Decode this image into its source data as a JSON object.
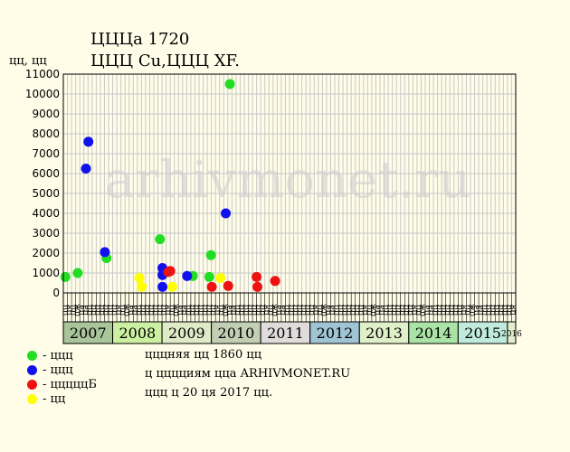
{
  "header": {
    "title": "ЦЦЦа 1720",
    "subtitle": "ЦЦЦ Cu,ЦЦЦ XF."
  },
  "watermark": "arhivmonet.ru",
  "legend": [
    {
      "color": "#22dd22",
      "label": "- ццц"
    },
    {
      "color": "#1111ee",
      "label": "- ццц"
    },
    {
      "color": "#ee1111",
      "label": "- цццццБ"
    },
    {
      "color": "#ffff00",
      "label": "- цц"
    }
  ],
  "notes": [
    "цццняя цц 1860 цц",
    "ц цццциям цца ARHIVMONET.RU",
    "ццц ц 20 ця 2017 цц."
  ],
  "chart_data": {
    "type": "scatter",
    "title": "ЦЦЦа 1720",
    "ylabel": "цц, цц",
    "ylim": [
      0,
      11000
    ],
    "y_ticks": [
      0,
      1000,
      2000,
      3000,
      4000,
      5000,
      6000,
      7000,
      8000,
      9000,
      10000,
      11000
    ],
    "grid": true,
    "month_labels": [
      "цц",
      "ця",
      "цц",
      "цж",
      "ца",
      "ца",
      "цц",
      "цц",
      "цц",
      "цц",
      "цц",
      "цц"
    ],
    "years": [
      {
        "label": "2007",
        "color": "#a9c59a"
      },
      {
        "label": "2008",
        "color": "#ccf0a2"
      },
      {
        "label": "2009",
        "color": "#dfeac6"
      },
      {
        "label": "2010",
        "color": "#c2cfb5"
      },
      {
        "label": "2011",
        "color": "#e0dcdc"
      },
      {
        "label": "2012",
        "color": "#9fc5d4"
      },
      {
        "label": "2013",
        "color": "#dff0c8"
      },
      {
        "label": "2014",
        "color": "#a9e3a5"
      },
      {
        "label": "2015",
        "color": "#c0ebdc"
      },
      {
        "label": "2016",
        "color": "#e3efcb"
      }
    ],
    "series": [
      {
        "name": "- ццц",
        "color": "#22dd22",
        "points": [
          {
            "slot": 0,
            "y": 800
          },
          {
            "slot": 3,
            "y": 1000
          },
          {
            "slot": 10,
            "y": 1750
          },
          {
            "slot": 23,
            "y": 2700
          },
          {
            "slot": 31,
            "y": 850
          },
          {
            "slot": 35,
            "y": 800
          },
          {
            "slot": 35.4,
            "y": 1900
          },
          {
            "slot": 40,
            "y": 10500
          }
        ]
      },
      {
        "name": "- ццц",
        "color": "#1111ee",
        "points": [
          {
            "slot": 5,
            "y": 6250
          },
          {
            "slot": 5.6,
            "y": 7600
          },
          {
            "slot": 9.6,
            "y": 2050
          },
          {
            "slot": 23.6,
            "y": 300
          },
          {
            "slot": 23.6,
            "y": 900
          },
          {
            "slot": 23.6,
            "y": 1250
          },
          {
            "slot": 29.6,
            "y": 850
          },
          {
            "slot": 39,
            "y": 4000
          }
        ]
      },
      {
        "name": "- цццццБ",
        "color": "#ee1111",
        "points": [
          {
            "slot": 25,
            "y": 1050
          },
          {
            "slot": 25.5,
            "y": 1100
          },
          {
            "slot": 35.6,
            "y": 300
          },
          {
            "slot": 39.6,
            "y": 350
          },
          {
            "slot": 46.5,
            "y": 800
          },
          {
            "slot": 46.7,
            "y": 300
          },
          {
            "slot": 51,
            "y": 600
          }
        ]
      },
      {
        "name": "- цц",
        "color": "#ffff00",
        "points": [
          {
            "slot": 18,
            "y": 750
          },
          {
            "slot": 18.6,
            "y": 300
          },
          {
            "slot": 26,
            "y": 300
          },
          {
            "slot": 37.7,
            "y": 750
          }
        ]
      }
    ]
  }
}
